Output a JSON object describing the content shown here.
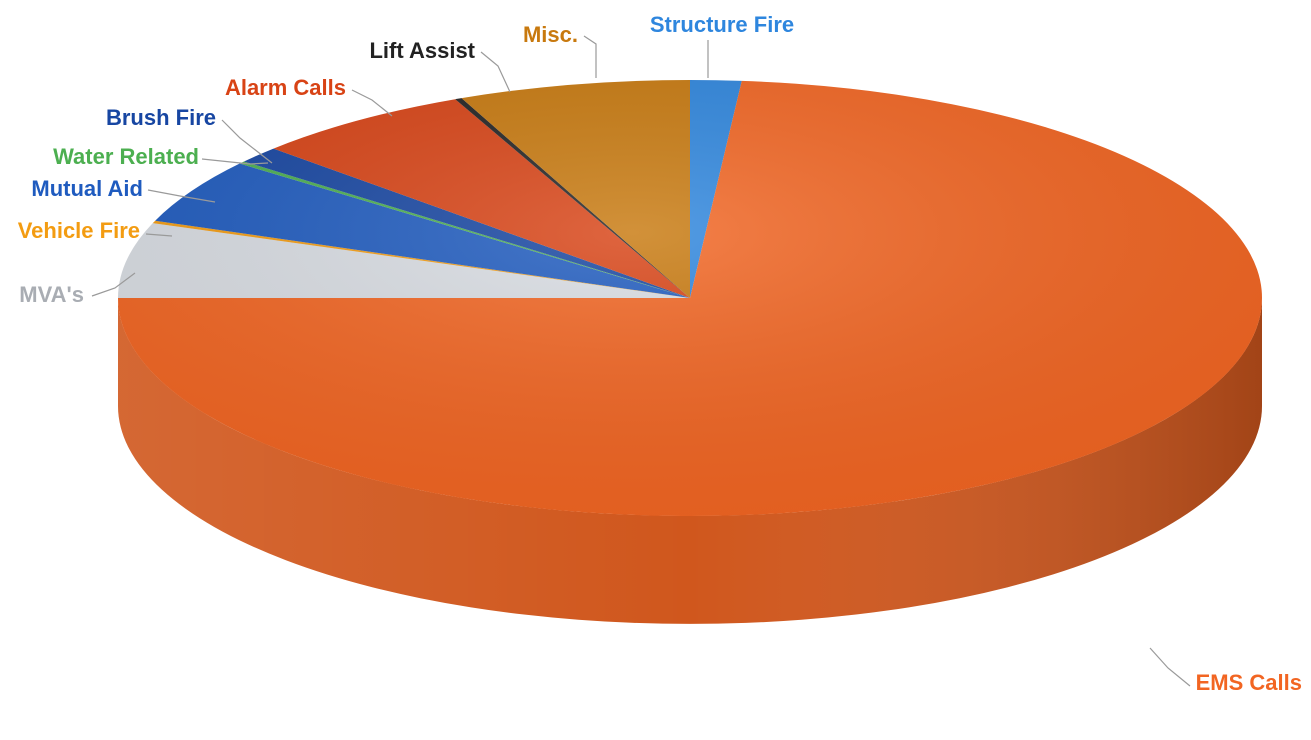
{
  "chart_data": {
    "type": "pie",
    "title": "",
    "three_d": true,
    "start_angle_deg": 90,
    "direction": "clockwise",
    "slices": [
      {
        "label": "Structure Fire",
        "value": 1.5,
        "color": "#2e86de",
        "label_color": "#2e86de"
      },
      {
        "label": "EMS Calls",
        "value": 76.5,
        "color": "#f26522",
        "label_color": "#f26522"
      },
      {
        "label": "MVA's",
        "value": 5.8,
        "color": "#d9dde3",
        "label_color": "#a9adb3"
      },
      {
        "label": "Vehicle Fire",
        "value": 0.2,
        "color": "#f39c12",
        "label_color": "#f39c12"
      },
      {
        "label": "Mutual Aid",
        "value": 5.0,
        "color": "#1f5bbf",
        "label_color": "#1f5bbf"
      },
      {
        "label": "Water Related",
        "value": 0.2,
        "color": "#4caf50",
        "label_color": "#4caf50"
      },
      {
        "label": "Brush Fire",
        "value": 1.3,
        "color": "#1746a2",
        "label_color": "#1746a2"
      },
      {
        "label": "Alarm Calls",
        "value": 6.5,
        "color": "#d84315",
        "label_color": "#d84315"
      },
      {
        "label": "Lift Assist",
        "value": 0.2,
        "color": "#222222",
        "label_color": "#222222"
      },
      {
        "label": "Misc.",
        "value": 6.8,
        "color": "#c8790e",
        "label_color": "#c8790e"
      }
    ]
  }
}
